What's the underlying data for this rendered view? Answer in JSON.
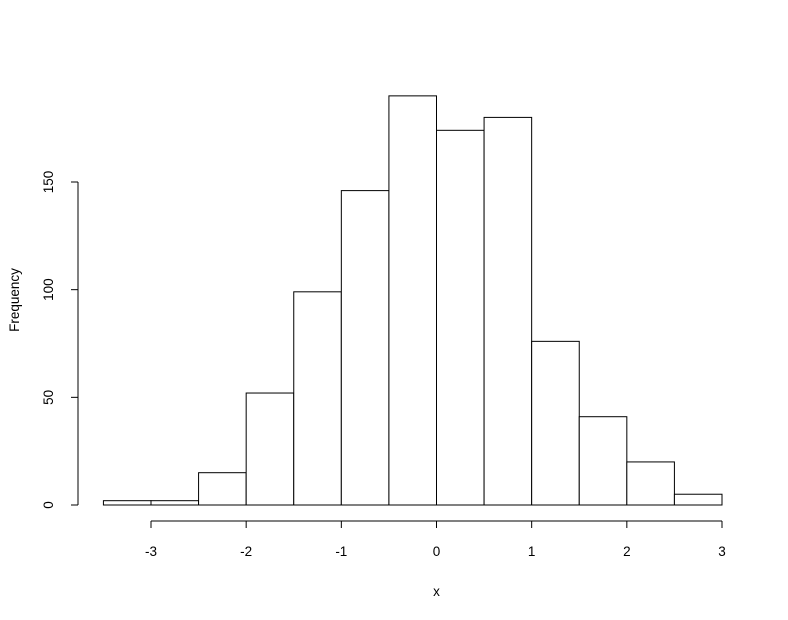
{
  "chart_data": {
    "type": "bar",
    "title": "",
    "xlabel": "x",
    "ylabel": "Frequency",
    "bins": [
      {
        "start": -3.5,
        "end": -3.0,
        "count": 2
      },
      {
        "start": -3.0,
        "end": -2.5,
        "count": 2
      },
      {
        "start": -2.5,
        "end": -2.0,
        "count": 15
      },
      {
        "start": -2.0,
        "end": -1.5,
        "count": 52
      },
      {
        "start": -1.5,
        "end": -1.0,
        "count": 99
      },
      {
        "start": -1.0,
        "end": -0.5,
        "count": 146
      },
      {
        "start": -0.5,
        "end": 0.0,
        "count": 190
      },
      {
        "start": 0.0,
        "end": 0.5,
        "count": 174
      },
      {
        "start": 0.5,
        "end": 1.0,
        "count": 180
      },
      {
        "start": 1.0,
        "end": 1.5,
        "count": 76
      },
      {
        "start": 1.5,
        "end": 2.0,
        "count": 41
      },
      {
        "start": 2.0,
        "end": 2.5,
        "count": 20
      },
      {
        "start": 2.5,
        "end": 3.0,
        "count": 5
      }
    ],
    "xticks": [
      -3,
      -2,
      -1,
      0,
      1,
      2,
      3
    ],
    "xtick_labels": [
      "-3",
      "-2",
      "-1",
      "0",
      "1",
      "2",
      "3"
    ],
    "yticks": [
      0,
      50,
      100,
      150
    ],
    "ytick_labels": [
      "0",
      "50",
      "100",
      "150"
    ],
    "xlim": [
      -3.5,
      3.0
    ],
    "ylim": [
      0,
      190
    ],
    "grid": false,
    "legend": "none",
    "bar_fill": "#ffffff",
    "bar_stroke": "#000000"
  }
}
